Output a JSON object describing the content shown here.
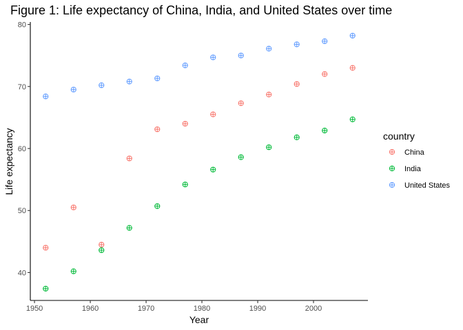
{
  "chart_data": {
    "type": "scatter",
    "title": "Figure 1: Life expectancy of China, India, and United States over time",
    "xlabel": "Year",
    "ylabel": "Life expectancy",
    "xlim": [
      1949.25,
      2009.75
    ],
    "ylim": [
      35.5,
      80.4
    ],
    "x_ticks": [
      1950,
      1960,
      1970,
      1980,
      1990,
      2000
    ],
    "y_ticks": [
      40,
      50,
      60,
      70,
      80
    ],
    "grid": false,
    "legend": {
      "title": "country",
      "position": "right"
    },
    "x": [
      1952,
      1957,
      1962,
      1967,
      1972,
      1977,
      1982,
      1987,
      1992,
      1997,
      2002,
      2007
    ],
    "series": [
      {
        "name": "China",
        "color": "#F8766D",
        "values": [
          44.0,
          50.5,
          44.5,
          58.4,
          63.1,
          64.0,
          65.5,
          67.3,
          68.7,
          70.4,
          72.0,
          73.0
        ]
      },
      {
        "name": "India",
        "color": "#00BA38",
        "values": [
          37.4,
          40.2,
          43.6,
          47.2,
          50.7,
          54.2,
          56.6,
          58.6,
          60.2,
          61.8,
          62.9,
          64.7
        ]
      },
      {
        "name": "United States",
        "color": "#619CFF",
        "values": [
          68.4,
          69.5,
          70.2,
          70.8,
          71.3,
          73.4,
          74.7,
          75.0,
          76.1,
          76.8,
          77.3,
          78.2
        ]
      }
    ],
    "marker": "circle-plus"
  }
}
